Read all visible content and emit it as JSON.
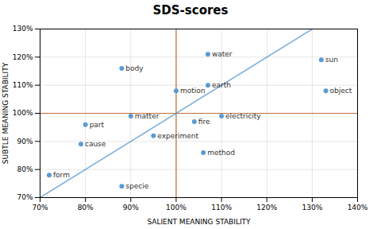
{
  "chart_data": {
    "type": "scatter",
    "title": "SDS-scores",
    "xlabel": "SALIENT MEANING STABILITY",
    "ylabel": "SUBTLE MEANING STABILITY",
    "color": "#5b9bd5",
    "grid": true,
    "xlim": [
      0.7,
      1.4
    ],
    "ylim": [
      0.7,
      1.3
    ],
    "xticks": [
      {
        "value": 0.7,
        "label": "70%"
      },
      {
        "value": 0.8,
        "label": "80%"
      },
      {
        "value": 0.9,
        "label": "90%"
      },
      {
        "value": 1.0,
        "label": "100%"
      },
      {
        "value": 1.1,
        "label": "110%"
      },
      {
        "value": 1.2,
        "label": "120%"
      },
      {
        "value": 1.3,
        "label": "130%"
      },
      {
        "value": 1.4,
        "label": "140%"
      }
    ],
    "yticks": [
      {
        "value": 0.7,
        "label": "70%"
      },
      {
        "value": 0.8,
        "label": "80%"
      },
      {
        "value": 0.9,
        "label": "90%"
      },
      {
        "value": 1.0,
        "label": "100%"
      },
      {
        "value": 1.1,
        "label": "110%"
      },
      {
        "value": 1.2,
        "label": "120%"
      },
      {
        "value": 1.3,
        "label": "130%"
      }
    ],
    "reference_lines": {
      "x": 1.0,
      "y": 1.0,
      "color": "#c0703a"
    },
    "diagonal": {
      "x": [
        0.7,
        1.3
      ],
      "y": [
        0.7,
        1.3
      ],
      "color": "#5b9bd5"
    },
    "points": [
      {
        "label": "form",
        "x": 0.72,
        "y": 0.78
      },
      {
        "label": "cause",
        "x": 0.79,
        "y": 0.89
      },
      {
        "label": "part",
        "x": 0.8,
        "y": 0.96
      },
      {
        "label": "specie",
        "x": 0.88,
        "y": 0.74
      },
      {
        "label": "body",
        "x": 0.88,
        "y": 1.16
      },
      {
        "label": "matter",
        "x": 0.9,
        "y": 0.99
      },
      {
        "label": "experiment",
        "x": 0.95,
        "y": 0.92
      },
      {
        "label": "motion",
        "x": 1.0,
        "y": 1.08
      },
      {
        "label": "fire",
        "x": 1.04,
        "y": 0.97
      },
      {
        "label": "method",
        "x": 1.06,
        "y": 0.86
      },
      {
        "label": "earth",
        "x": 1.07,
        "y": 1.1
      },
      {
        "label": "water",
        "x": 1.07,
        "y": 1.21
      },
      {
        "label": "electricity",
        "x": 1.1,
        "y": 0.99
      },
      {
        "label": "sun",
        "x": 1.32,
        "y": 1.19
      },
      {
        "label": "object",
        "x": 1.33,
        "y": 1.08
      }
    ]
  }
}
